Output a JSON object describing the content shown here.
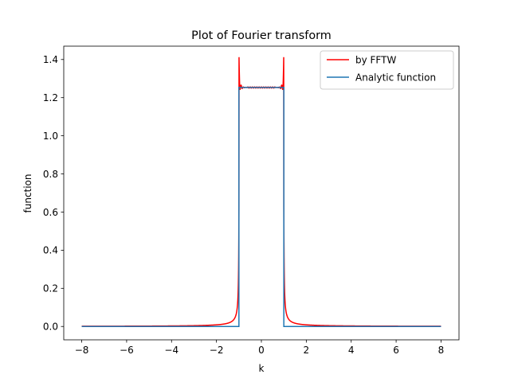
{
  "chart_data": {
    "type": "line",
    "title": "Plot of Fourier transform",
    "xlabel": "k",
    "ylabel": "function",
    "xlim": [
      -8.8,
      8.8
    ],
    "ylim": [
      -0.07,
      1.47
    ],
    "xticks": [
      -8,
      -6,
      -4,
      -2,
      0,
      2,
      4,
      6,
      8
    ],
    "xtick_labels": [
      "−8",
      "−6",
      "−4",
      "−2",
      "0",
      "2",
      "4",
      "6",
      "8"
    ],
    "yticks": [
      0.0,
      0.2,
      0.4,
      0.6,
      0.8,
      1.0,
      1.2,
      1.4
    ],
    "ytick_labels": [
      "0.0",
      "0.2",
      "0.4",
      "0.6",
      "0.8",
      "1.0",
      "1.2",
      "1.4"
    ],
    "grid": false,
    "legend": "top-right",
    "series": [
      {
        "name": "by FFTW",
        "color": "#ff0000",
        "description_x_range": [
          -8,
          8
        ],
        "plateau_value": 1.2533,
        "edge_peak": 1.4,
        "edges": [
          -1,
          1
        ]
      },
      {
        "name": "Analytic function",
        "color": "#1f77b4",
        "x": [
          -8,
          -1,
          -1,
          1,
          1,
          8
        ],
        "y": [
          0,
          0,
          1.2533,
          1.2533,
          0,
          0
        ]
      }
    ]
  }
}
